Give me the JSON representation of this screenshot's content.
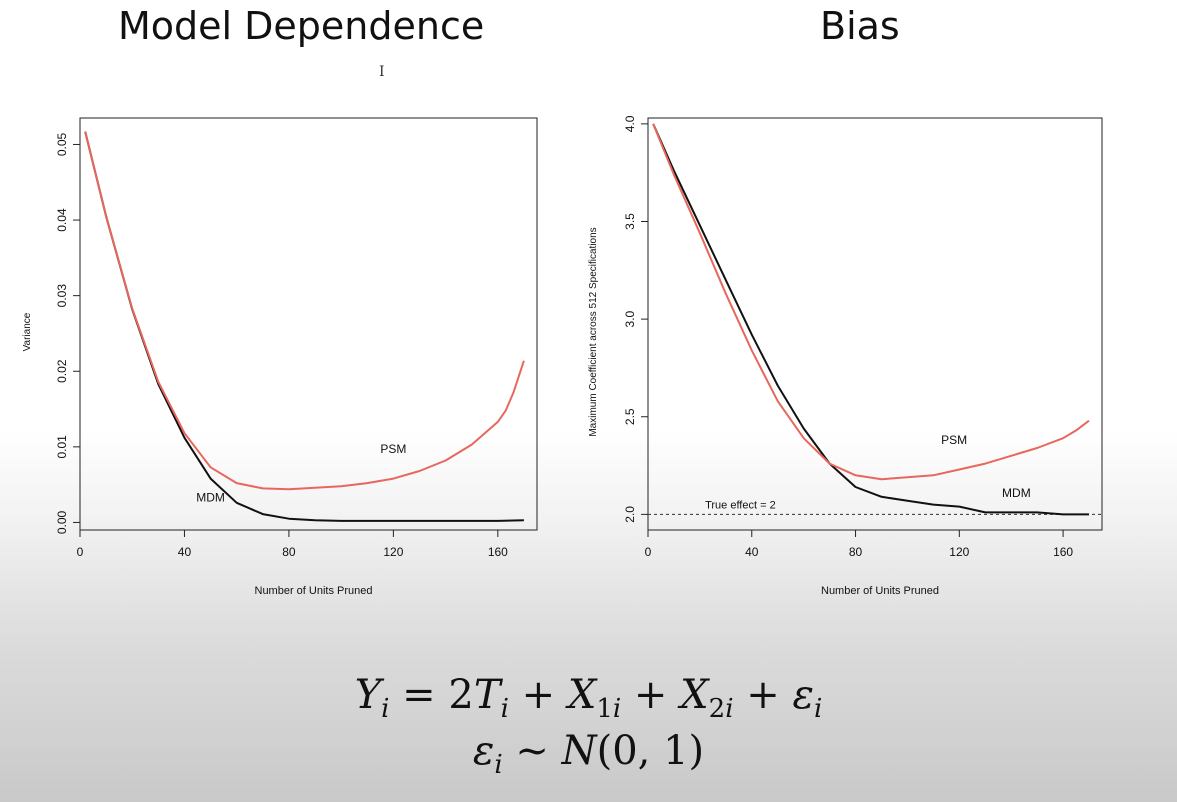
{
  "titles": {
    "left": "Model Dependence",
    "right": "Bias"
  },
  "equations": {
    "line1": "Y_i = 2T_i + X_1i + X_2i + ε_i",
    "line2": "ε_i ~ N(0, 1)"
  },
  "colors": {
    "psm": "#e8675d",
    "mdm": "#111111"
  },
  "chart_data": [
    {
      "type": "line",
      "title": "Model Dependence",
      "xlabel": "Number of Units Pruned",
      "ylabel": "Variance",
      "xlim": [
        0,
        175
      ],
      "ylim": [
        -0.001,
        0.0535
      ],
      "xticks": [
        0,
        40,
        80,
        120,
        160
      ],
      "yticks": [
        0.0,
        0.01,
        0.02,
        0.03,
        0.04,
        0.05
      ],
      "ytick_labels": [
        "0.00",
        "0.01",
        "0.02",
        "0.03",
        "0.04",
        "0.05"
      ],
      "grid": false,
      "series": [
        {
          "name": "MDM",
          "x": [
            2,
            10,
            20,
            30,
            40,
            50,
            60,
            70,
            80,
            90,
            100,
            120,
            140,
            160,
            170
          ],
          "y": [
            0.0517,
            0.0405,
            0.0282,
            0.0183,
            0.0112,
            0.0058,
            0.0026,
            0.0011,
            0.0005,
            0.0003,
            0.0002,
            0.0002,
            0.0002,
            0.0002,
            0.0003
          ]
        },
        {
          "name": "PSM",
          "x": [
            2,
            10,
            20,
            30,
            40,
            50,
            60,
            70,
            80,
            90,
            100,
            110,
            120,
            130,
            140,
            150,
            155,
            160,
            163,
            166,
            170
          ],
          "y": [
            0.0517,
            0.0405,
            0.0283,
            0.0186,
            0.0118,
            0.0073,
            0.0052,
            0.0045,
            0.0044,
            0.0046,
            0.0048,
            0.0052,
            0.0058,
            0.0068,
            0.0082,
            0.0103,
            0.0118,
            0.0133,
            0.0148,
            0.0172,
            0.0214
          ]
        }
      ],
      "annotations": [
        {
          "text": "PSM",
          "x": 120,
          "y": 0.0092
        },
        {
          "text": "MDM",
          "x": 50,
          "y": 0.0028
        }
      ]
    },
    {
      "type": "line",
      "title": "Bias",
      "xlabel": "Number of Units Pruned",
      "ylabel": "Maximum Coefficient across 512 Specifications",
      "xlim": [
        0,
        175
      ],
      "ylim": [
        1.92,
        4.03
      ],
      "xticks": [
        0,
        40,
        80,
        120,
        160
      ],
      "yticks": [
        2.0,
        2.5,
        3.0,
        3.5,
        4.0
      ],
      "ytick_labels": [
        "2.0",
        "2.5",
        "3.0",
        "3.5",
        "4.0"
      ],
      "grid": false,
      "reference_line": {
        "y": 2.0,
        "label": "True effect = 2",
        "style": "dashed"
      },
      "series": [
        {
          "name": "MDM",
          "x": [
            2,
            10,
            20,
            30,
            40,
            50,
            60,
            70,
            80,
            90,
            100,
            110,
            120,
            130,
            140,
            150,
            160,
            170
          ],
          "y": [
            4.0,
            3.76,
            3.48,
            3.2,
            2.92,
            2.66,
            2.44,
            2.26,
            2.14,
            2.09,
            2.07,
            2.05,
            2.04,
            2.01,
            2.01,
            2.01,
            2.0,
            2.0
          ]
        },
        {
          "name": "PSM",
          "x": [
            2,
            10,
            20,
            30,
            40,
            50,
            60,
            70,
            80,
            90,
            100,
            110,
            120,
            130,
            140,
            150,
            160,
            165,
            170
          ],
          "y": [
            4.0,
            3.74,
            3.44,
            3.13,
            2.84,
            2.58,
            2.39,
            2.26,
            2.2,
            2.18,
            2.19,
            2.2,
            2.23,
            2.26,
            2.3,
            2.34,
            2.39,
            2.43,
            2.48
          ]
        }
      ],
      "annotations": [
        {
          "text": "PSM",
          "x": 118,
          "y": 2.36
        },
        {
          "text": "MDM",
          "x": 142,
          "y": 2.09
        }
      ]
    }
  ]
}
